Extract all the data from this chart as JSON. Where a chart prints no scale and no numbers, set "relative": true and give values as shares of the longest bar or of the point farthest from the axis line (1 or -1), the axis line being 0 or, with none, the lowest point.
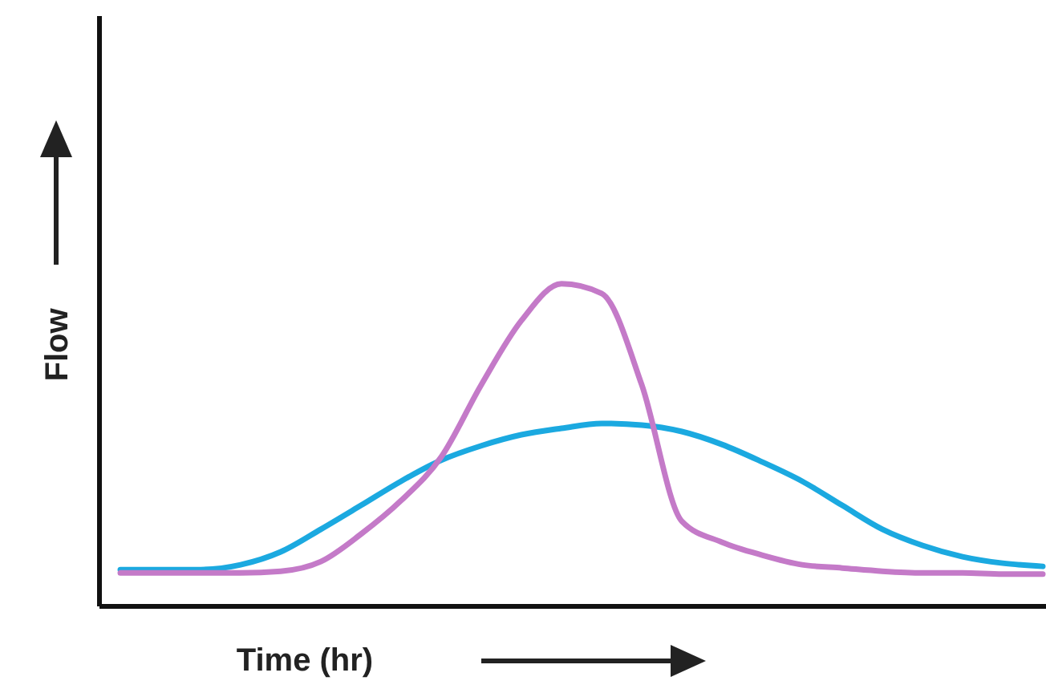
{
  "chart_data": {
    "type": "line",
    "relative": true,
    "xlabel": "Time (hr)",
    "ylabel": "Flow",
    "categories": [
      null,
      null,
      null,
      null,
      null,
      null,
      null,
      null,
      null,
      null,
      null,
      null,
      null,
      null,
      null,
      null,
      null,
      null,
      null,
      null,
      null,
      null,
      null,
      null
    ],
    "series": [
      {
        "color": "#1ba9e0",
        "values": [
          0.114,
          0.114,
          0.114,
          0.129,
          0.169,
          0.239,
          0.313,
          0.388,
          0.453,
          0.498,
          0.532,
          0.552,
          0.567,
          0.562,
          0.542,
          0.502,
          0.448,
          0.388,
          0.313,
          0.239,
          0.189,
          0.154,
          0.134,
          0.124
        ]
      },
      {
        "color": "#c47ac8",
        "values": [
          0.104,
          0.104,
          0.104,
          0.104,
          0.109,
          0.139,
          0.224,
          0.328,
          0.463,
          0.687,
          0.886,
          1,
          0.97,
          0.687,
          0.264,
          0.199,
          0.159,
          0.129,
          0.119,
          0.109,
          0.104,
          0.104,
          0.1,
          0.1
        ]
      }
    ]
  }
}
